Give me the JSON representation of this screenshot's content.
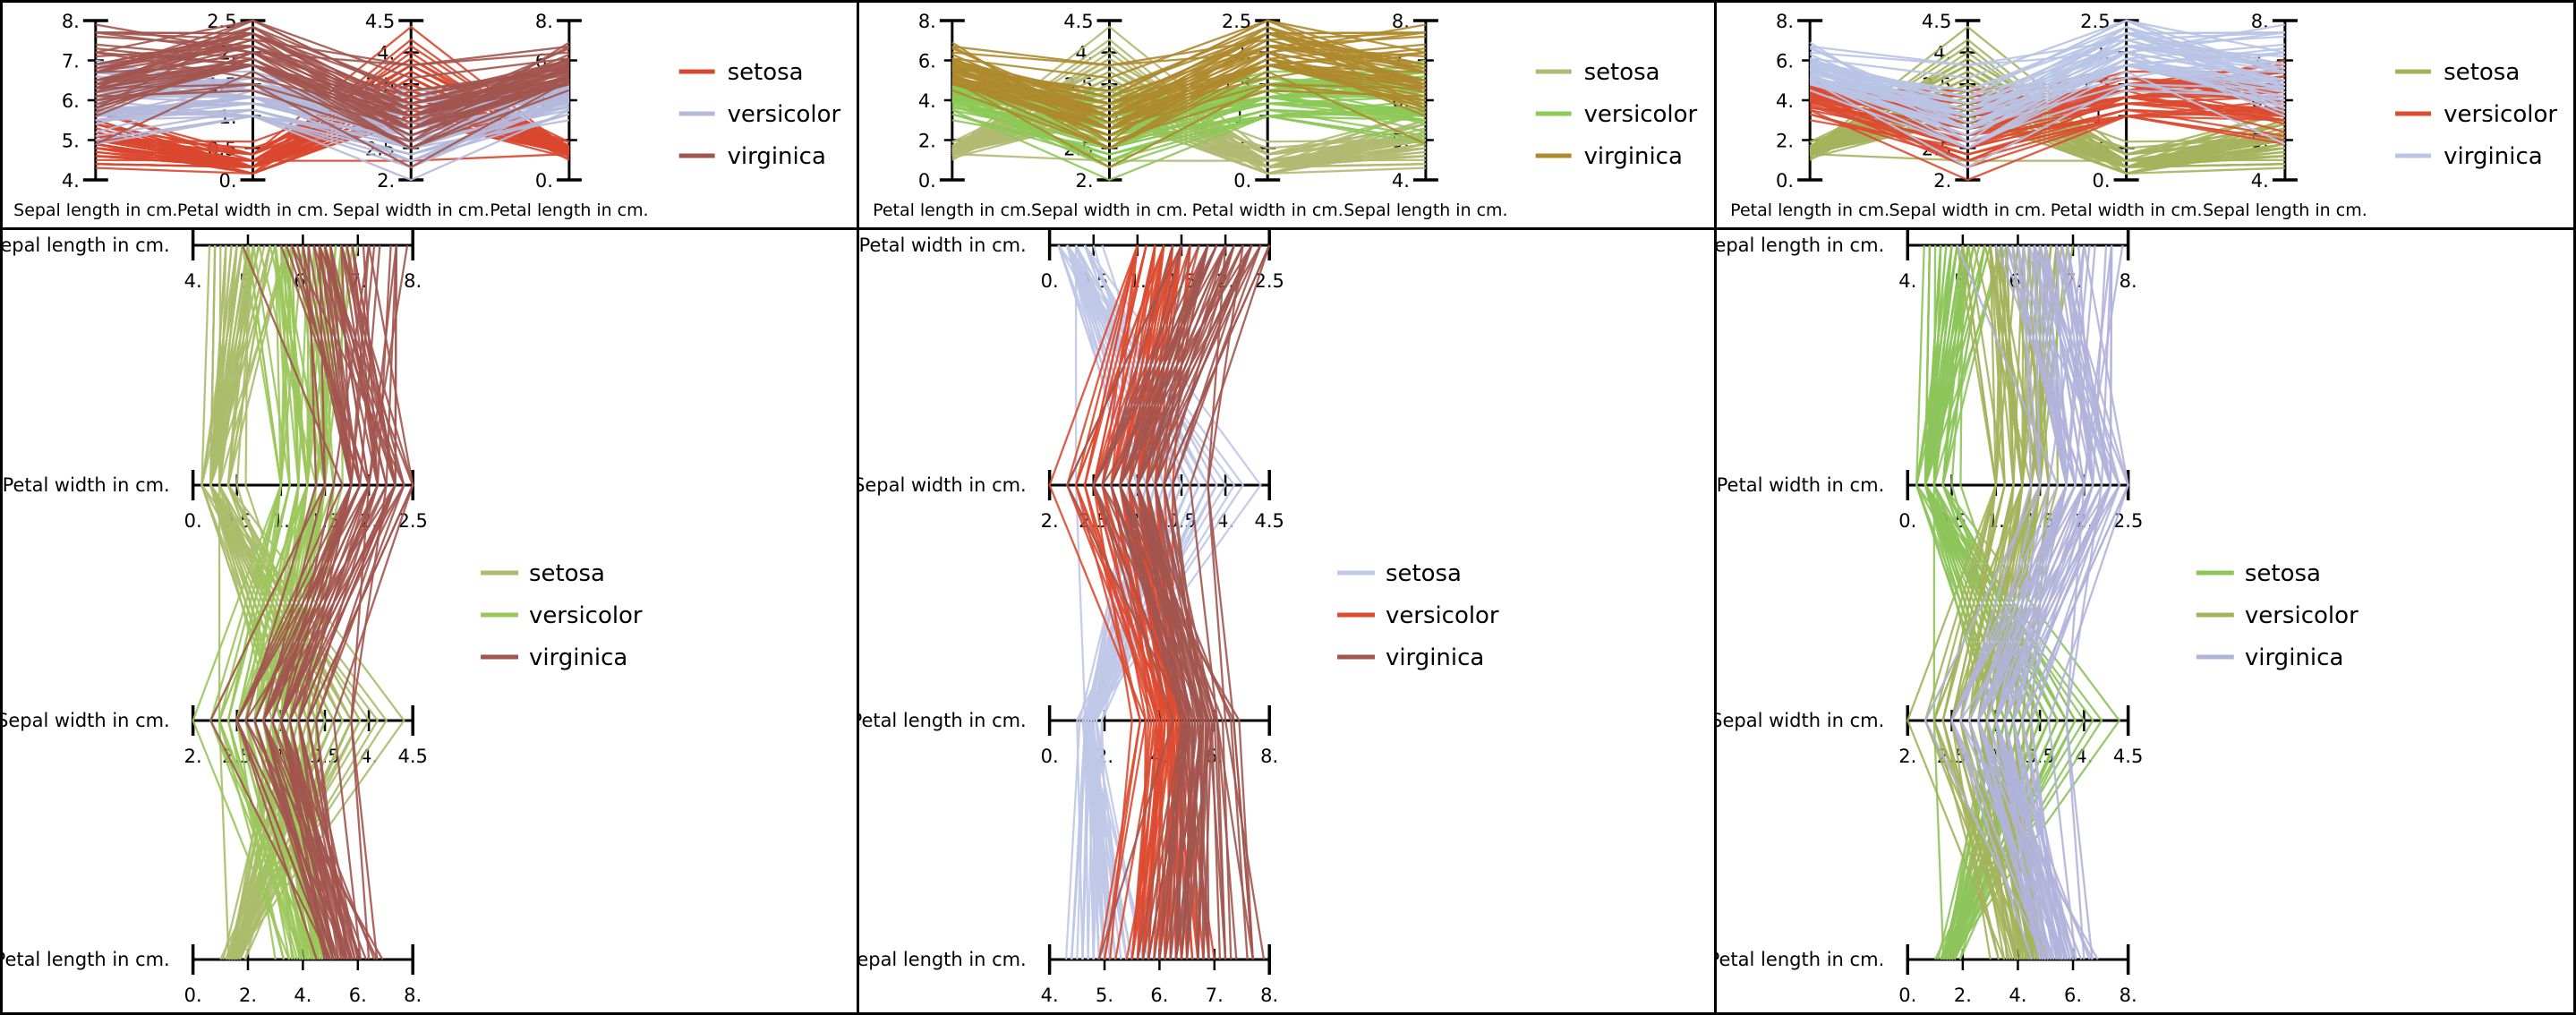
{
  "figure": {
    "kind": "parallel-coordinates small multiples",
    "background": "#ffffff",
    "border_color": "#000000",
    "rows": 2,
    "cols": 3
  },
  "chart_data": {
    "type": "line",
    "subtype": "parallel-coordinates",
    "dataset": "iris",
    "classes": [
      "setosa",
      "versicolor",
      "virginica"
    ],
    "features": [
      "sepal_length",
      "sepal_width",
      "petal_length",
      "petal_width"
    ],
    "axes": {
      "sepal_length": {
        "label": "Sepal length in cm.",
        "min": 4,
        "max": 8,
        "tick_values": [
          4,
          5,
          6,
          7,
          8
        ],
        "tick_labels": [
          "4.",
          "5.",
          "6.",
          "7.",
          "8."
        ]
      },
      "sepal_width": {
        "label": "Sepal width in cm.",
        "min": 2,
        "max": 4.5,
        "tick_values": [
          2,
          2.5,
          3,
          3.5,
          4,
          4.5
        ],
        "tick_labels": [
          "2.",
          "2.5",
          "3.",
          "3.5",
          "4.",
          "4.5"
        ]
      },
      "petal_length": {
        "label": "Petal length in cm.",
        "min": 0,
        "max": 8,
        "tick_values": [
          0,
          2,
          4,
          6,
          8
        ],
        "tick_labels": [
          "0.",
          "2.",
          "4.",
          "6.",
          "8."
        ]
      },
      "petal_width": {
        "label": "Petal width in cm.",
        "min": 0,
        "max": 2.5,
        "tick_values": [
          0,
          0.5,
          1,
          1.5,
          2,
          2.5
        ],
        "tick_labels": [
          "0.",
          "0.5",
          "1.",
          "1.5",
          "2.",
          "2.5"
        ]
      }
    },
    "panels": [
      {
        "id": "top-left",
        "orientation": "vertical",
        "axes": [
          "sepal_length",
          "petal_width",
          "sepal_width",
          "petal_length"
        ],
        "legend": [
          {
            "label": "setosa",
            "color": "#d9472f"
          },
          {
            "label": "versicolor",
            "color": "#b4b9dc"
          },
          {
            "label": "virginica",
            "color": "#a2554f"
          }
        ]
      },
      {
        "id": "top-middle",
        "orientation": "vertical",
        "axes": [
          "petal_length",
          "sepal_width",
          "petal_width",
          "sepal_length"
        ],
        "legend": [
          {
            "label": "setosa",
            "color": "#b1ba72"
          },
          {
            "label": "versicolor",
            "color": "#8cc956"
          },
          {
            "label": "virginica",
            "color": "#ae8a2e"
          }
        ]
      },
      {
        "id": "top-right",
        "orientation": "vertical",
        "axes": [
          "petal_length",
          "sepal_width",
          "petal_width",
          "sepal_length"
        ],
        "legend": [
          {
            "label": "setosa",
            "color": "#a5b25c"
          },
          {
            "label": "versicolor",
            "color": "#dd4b31"
          },
          {
            "label": "virginica",
            "color": "#b9c4e6"
          }
        ]
      },
      {
        "id": "bottom-left",
        "orientation": "horizontal",
        "axes": [
          "sepal_length",
          "petal_width",
          "sepal_width",
          "petal_length"
        ],
        "legend": [
          {
            "label": "setosa",
            "color": "#abbc6b"
          },
          {
            "label": "versicolor",
            "color": "#9bc75b"
          },
          {
            "label": "virginica",
            "color": "#a2554f"
          }
        ]
      },
      {
        "id": "bottom-middle",
        "orientation": "horizontal",
        "axes": [
          "petal_width",
          "sepal_width",
          "petal_length",
          "sepal_length"
        ],
        "legend": [
          {
            "label": "setosa",
            "color": "#c0c8e8"
          },
          {
            "label": "versicolor",
            "color": "#dd4b31"
          },
          {
            "label": "virginica",
            "color": "#a2554f"
          }
        ]
      },
      {
        "id": "bottom-right",
        "orientation": "horizontal",
        "axes": [
          "sepal_length",
          "petal_width",
          "sepal_width",
          "petal_length"
        ],
        "legend": [
          {
            "label": "setosa",
            "color": "#8dc45b"
          },
          {
            "label": "versicolor",
            "color": "#a5b25c"
          },
          {
            "label": "virginica",
            "color": "#b1b3da"
          }
        ]
      }
    ],
    "samples": {
      "setosa": [
        [
          5.1,
          3.5,
          1.4,
          0.2
        ],
        [
          4.9,
          3.0,
          1.4,
          0.2
        ],
        [
          4.7,
          3.2,
          1.3,
          0.2
        ],
        [
          4.6,
          3.1,
          1.5,
          0.2
        ],
        [
          5.0,
          3.6,
          1.4,
          0.2
        ],
        [
          5.4,
          3.9,
          1.7,
          0.4
        ],
        [
          4.6,
          3.4,
          1.4,
          0.3
        ],
        [
          5.0,
          3.4,
          1.5,
          0.2
        ],
        [
          4.4,
          2.9,
          1.4,
          0.2
        ],
        [
          4.9,
          3.1,
          1.5,
          0.1
        ],
        [
          5.4,
          3.7,
          1.5,
          0.2
        ],
        [
          4.8,
          3.4,
          1.6,
          0.2
        ],
        [
          4.8,
          3.0,
          1.4,
          0.1
        ],
        [
          4.3,
          3.0,
          1.1,
          0.1
        ],
        [
          5.8,
          4.0,
          1.2,
          0.2
        ],
        [
          5.7,
          4.4,
          1.5,
          0.4
        ],
        [
          5.4,
          3.9,
          1.3,
          0.4
        ],
        [
          5.1,
          3.5,
          1.4,
          0.3
        ],
        [
          5.7,
          3.8,
          1.7,
          0.3
        ],
        [
          5.1,
          3.8,
          1.5,
          0.3
        ],
        [
          5.4,
          3.4,
          1.7,
          0.2
        ],
        [
          5.1,
          3.7,
          1.5,
          0.4
        ],
        [
          4.6,
          3.6,
          1.0,
          0.2
        ],
        [
          5.1,
          3.3,
          1.7,
          0.5
        ],
        [
          4.8,
          3.4,
          1.9,
          0.2
        ],
        [
          5.0,
          3.0,
          1.6,
          0.2
        ],
        [
          5.0,
          3.4,
          1.6,
          0.4
        ],
        [
          5.2,
          3.5,
          1.5,
          0.2
        ],
        [
          5.2,
          3.4,
          1.4,
          0.2
        ],
        [
          4.7,
          3.2,
          1.6,
          0.2
        ],
        [
          4.8,
          3.1,
          1.6,
          0.2
        ],
        [
          5.4,
          3.4,
          1.5,
          0.4
        ],
        [
          5.2,
          4.1,
          1.5,
          0.1
        ],
        [
          5.5,
          4.2,
          1.4,
          0.2
        ],
        [
          4.9,
          3.1,
          1.5,
          0.2
        ],
        [
          5.0,
          3.2,
          1.2,
          0.2
        ],
        [
          5.5,
          3.5,
          1.3,
          0.2
        ],
        [
          4.9,
          3.6,
          1.4,
          0.1
        ],
        [
          4.4,
          3.0,
          1.3,
          0.2
        ],
        [
          5.1,
          3.4,
          1.5,
          0.2
        ],
        [
          5.0,
          3.5,
          1.3,
          0.3
        ],
        [
          4.5,
          2.3,
          1.3,
          0.3
        ],
        [
          4.4,
          3.2,
          1.3,
          0.2
        ],
        [
          5.0,
          3.5,
          1.6,
          0.6
        ],
        [
          5.1,
          3.8,
          1.9,
          0.4
        ],
        [
          4.8,
          3.0,
          1.4,
          0.3
        ],
        [
          5.1,
          3.8,
          1.6,
          0.2
        ],
        [
          4.6,
          3.2,
          1.4,
          0.2
        ],
        [
          5.3,
          3.7,
          1.5,
          0.2
        ],
        [
          5.0,
          3.3,
          1.4,
          0.2
        ]
      ],
      "versicolor": [
        [
          7.0,
          3.2,
          4.7,
          1.4
        ],
        [
          6.4,
          3.2,
          4.5,
          1.5
        ],
        [
          6.9,
          3.1,
          4.9,
          1.5
        ],
        [
          5.5,
          2.3,
          4.0,
          1.3
        ],
        [
          6.5,
          2.8,
          4.6,
          1.5
        ],
        [
          5.7,
          2.8,
          4.5,
          1.3
        ],
        [
          6.3,
          3.3,
          4.7,
          1.6
        ],
        [
          4.9,
          2.4,
          3.3,
          1.0
        ],
        [
          6.6,
          2.9,
          4.6,
          1.3
        ],
        [
          5.2,
          2.7,
          3.9,
          1.4
        ],
        [
          5.0,
          2.0,
          3.5,
          1.0
        ],
        [
          5.9,
          3.0,
          4.2,
          1.5
        ],
        [
          6.0,
          2.2,
          4.0,
          1.0
        ],
        [
          6.1,
          2.9,
          4.7,
          1.4
        ],
        [
          5.6,
          2.9,
          3.6,
          1.3
        ],
        [
          6.7,
          3.1,
          4.4,
          1.4
        ],
        [
          5.6,
          3.0,
          4.5,
          1.5
        ],
        [
          5.8,
          2.7,
          4.1,
          1.0
        ],
        [
          6.2,
          2.2,
          4.5,
          1.5
        ],
        [
          5.6,
          2.5,
          3.9,
          1.1
        ],
        [
          5.9,
          3.2,
          4.8,
          1.8
        ],
        [
          6.1,
          2.8,
          4.0,
          1.3
        ],
        [
          6.3,
          2.5,
          4.9,
          1.5
        ],
        [
          6.1,
          2.8,
          4.7,
          1.2
        ],
        [
          6.4,
          2.9,
          4.3,
          1.3
        ],
        [
          6.6,
          3.0,
          4.4,
          1.4
        ],
        [
          6.8,
          2.8,
          4.8,
          1.4
        ],
        [
          6.7,
          3.0,
          5.0,
          1.7
        ],
        [
          6.0,
          2.9,
          4.5,
          1.5
        ],
        [
          5.7,
          2.6,
          3.5,
          1.0
        ],
        [
          5.5,
          2.4,
          3.8,
          1.1
        ],
        [
          5.5,
          2.4,
          3.7,
          1.0
        ],
        [
          5.8,
          2.7,
          3.9,
          1.2
        ],
        [
          6.0,
          2.7,
          5.1,
          1.6
        ],
        [
          5.4,
          3.0,
          4.5,
          1.5
        ],
        [
          6.0,
          3.4,
          4.5,
          1.6
        ],
        [
          6.7,
          3.1,
          4.7,
          1.5
        ],
        [
          6.3,
          2.3,
          4.4,
          1.3
        ],
        [
          5.6,
          3.0,
          4.1,
          1.3
        ],
        [
          5.5,
          2.5,
          4.0,
          1.3
        ],
        [
          5.5,
          2.6,
          4.4,
          1.2
        ],
        [
          6.1,
          3.0,
          4.6,
          1.4
        ],
        [
          5.8,
          2.6,
          4.0,
          1.2
        ],
        [
          5.0,
          2.3,
          3.3,
          1.0
        ],
        [
          5.6,
          2.7,
          4.2,
          1.3
        ],
        [
          5.7,
          3.0,
          4.2,
          1.2
        ],
        [
          5.7,
          2.9,
          4.2,
          1.3
        ],
        [
          6.2,
          2.9,
          4.3,
          1.3
        ],
        [
          5.1,
          2.5,
          3.0,
          1.1
        ],
        [
          5.7,
          2.8,
          4.1,
          1.3
        ]
      ],
      "virginica": [
        [
          6.3,
          3.3,
          6.0,
          2.5
        ],
        [
          5.8,
          2.7,
          5.1,
          1.9
        ],
        [
          7.1,
          3.0,
          5.9,
          2.1
        ],
        [
          6.3,
          2.9,
          5.6,
          1.8
        ],
        [
          6.5,
          3.0,
          5.8,
          2.2
        ],
        [
          7.6,
          3.0,
          6.6,
          2.1
        ],
        [
          4.9,
          2.5,
          4.5,
          1.7
        ],
        [
          7.3,
          2.9,
          6.3,
          1.8
        ],
        [
          6.7,
          2.5,
          5.8,
          1.8
        ],
        [
          7.2,
          3.6,
          6.1,
          2.5
        ],
        [
          6.5,
          3.2,
          5.1,
          2.0
        ],
        [
          6.4,
          2.7,
          5.3,
          1.9
        ],
        [
          6.8,
          3.0,
          5.5,
          2.1
        ],
        [
          5.7,
          2.5,
          5.0,
          2.0
        ],
        [
          5.8,
          2.8,
          5.1,
          2.4
        ],
        [
          6.4,
          3.2,
          5.3,
          2.3
        ],
        [
          6.5,
          3.0,
          5.5,
          1.8
        ],
        [
          7.7,
          3.8,
          6.7,
          2.2
        ],
        [
          7.7,
          2.6,
          6.9,
          2.3
        ],
        [
          6.0,
          2.2,
          5.0,
          1.5
        ],
        [
          6.9,
          3.2,
          5.7,
          2.3
        ],
        [
          5.6,
          2.8,
          4.9,
          2.0
        ],
        [
          7.7,
          2.8,
          6.7,
          2.0
        ],
        [
          6.3,
          2.7,
          4.9,
          1.8
        ],
        [
          6.7,
          3.3,
          5.7,
          2.1
        ],
        [
          7.2,
          3.2,
          6.0,
          1.8
        ],
        [
          6.2,
          2.8,
          4.8,
          1.8
        ],
        [
          6.1,
          3.0,
          4.9,
          1.8
        ],
        [
          6.4,
          2.8,
          5.6,
          2.1
        ],
        [
          7.2,
          3.0,
          5.8,
          1.6
        ],
        [
          7.4,
          2.8,
          6.1,
          1.9
        ],
        [
          7.9,
          3.8,
          6.4,
          2.0
        ],
        [
          6.4,
          2.8,
          5.6,
          2.2
        ],
        [
          6.3,
          2.8,
          5.1,
          1.5
        ],
        [
          6.1,
          2.6,
          5.6,
          1.4
        ],
        [
          7.7,
          3.0,
          6.1,
          2.3
        ],
        [
          6.3,
          3.4,
          5.6,
          2.4
        ],
        [
          6.4,
          3.1,
          5.5,
          1.8
        ],
        [
          6.0,
          3.0,
          4.8,
          1.8
        ],
        [
          6.9,
          3.1,
          5.4,
          2.1
        ],
        [
          6.7,
          3.1,
          5.6,
          2.4
        ],
        [
          6.9,
          3.1,
          5.1,
          2.3
        ],
        [
          5.8,
          2.7,
          5.1,
          1.9
        ],
        [
          6.8,
          3.2,
          5.9,
          2.3
        ],
        [
          6.7,
          3.3,
          5.7,
          2.5
        ],
        [
          6.7,
          3.0,
          5.2,
          2.3
        ],
        [
          6.3,
          2.5,
          5.0,
          1.9
        ],
        [
          6.5,
          3.0,
          5.2,
          2.0
        ],
        [
          6.2,
          3.4,
          5.4,
          2.3
        ],
        [
          5.9,
          3.0,
          5.1,
          1.8
        ]
      ]
    }
  }
}
